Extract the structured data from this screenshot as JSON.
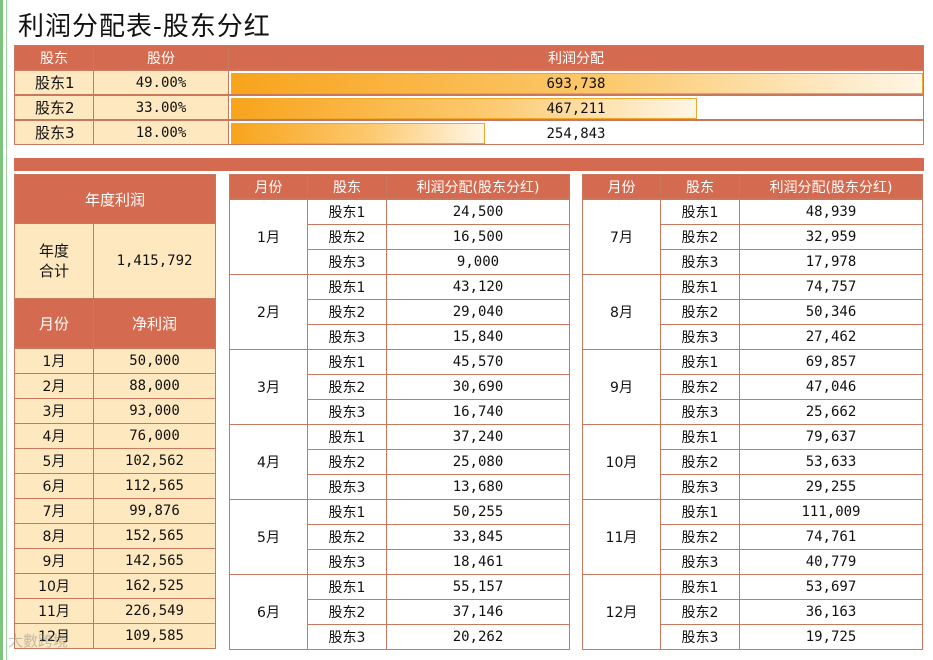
{
  "title": "利润分配表-股东分红",
  "summary": {
    "headers": [
      "股东",
      "股份",
      "利润分配"
    ],
    "rows": [
      {
        "name": "股东1",
        "pct": "49.00%",
        "amount": "693,738",
        "share": 0.49
      },
      {
        "name": "股东2",
        "pct": "33.00%",
        "amount": "467,211",
        "share": 0.33
      },
      {
        "name": "股东3",
        "pct": "18.00%",
        "amount": "254,843",
        "share": 0.18
      }
    ]
  },
  "annual": {
    "header": "年度利润",
    "total_label": "年度\n合计",
    "total_value": "1,415,792",
    "month_header": "月份",
    "profit_header": "净利润",
    "months": [
      {
        "month": "1月",
        "profit": "50,000"
      },
      {
        "month": "2月",
        "profit": "88,000"
      },
      {
        "month": "3月",
        "profit": "93,000"
      },
      {
        "month": "4月",
        "profit": "76,000"
      },
      {
        "month": "5月",
        "profit": "102,562"
      },
      {
        "month": "6月",
        "profit": "112,565"
      },
      {
        "month": "7月",
        "profit": "99,876"
      },
      {
        "month": "8月",
        "profit": "152,565"
      },
      {
        "month": "9月",
        "profit": "142,565"
      },
      {
        "month": "10月",
        "profit": "162,525"
      },
      {
        "month": "11月",
        "profit": "226,549"
      },
      {
        "month": "12月",
        "profit": "109,585"
      }
    ]
  },
  "detail_headers": [
    "月份",
    "股东",
    "利润分配(股东分红)"
  ],
  "detail_left": [
    {
      "month": "1月",
      "rows": [
        [
          "股东1",
          "24,500"
        ],
        [
          "股东2",
          "16,500"
        ],
        [
          "股东3",
          "9,000"
        ]
      ]
    },
    {
      "month": "2月",
      "rows": [
        [
          "股东1",
          "43,120"
        ],
        [
          "股东2",
          "29,040"
        ],
        [
          "股东3",
          "15,840"
        ]
      ]
    },
    {
      "month": "3月",
      "rows": [
        [
          "股东1",
          "45,570"
        ],
        [
          "股东2",
          "30,690"
        ],
        [
          "股东3",
          "16,740"
        ]
      ]
    },
    {
      "month": "4月",
      "rows": [
        [
          "股东1",
          "37,240"
        ],
        [
          "股东2",
          "25,080"
        ],
        [
          "股东3",
          "13,680"
        ]
      ]
    },
    {
      "month": "5月",
      "rows": [
        [
          "股东1",
          "50,255"
        ],
        [
          "股东2",
          "33,845"
        ],
        [
          "股东3",
          "18,461"
        ]
      ]
    },
    {
      "month": "6月",
      "rows": [
        [
          "股东1",
          "55,157"
        ],
        [
          "股东2",
          "37,146"
        ],
        [
          "股东3",
          "20,262"
        ]
      ]
    }
  ],
  "detail_right": [
    {
      "month": "7月",
      "rows": [
        [
          "股东1",
          "48,939"
        ],
        [
          "股东2",
          "32,959"
        ],
        [
          "股东3",
          "17,978"
        ]
      ]
    },
    {
      "month": "8月",
      "rows": [
        [
          "股东1",
          "74,757"
        ],
        [
          "股东2",
          "50,346"
        ],
        [
          "股东3",
          "27,462"
        ]
      ]
    },
    {
      "month": "9月",
      "rows": [
        [
          "股东1",
          "69,857"
        ],
        [
          "股东2",
          "47,046"
        ],
        [
          "股东3",
          "25,662"
        ]
      ]
    },
    {
      "month": "10月",
      "rows": [
        [
          "股东1",
          "79,637"
        ],
        [
          "股东2",
          "53,633"
        ],
        [
          "股东3",
          "29,255"
        ]
      ]
    },
    {
      "month": "11月",
      "rows": [
        [
          "股东1",
          "111,009"
        ],
        [
          "股东2",
          "74,761"
        ],
        [
          "股东3",
          "40,779"
        ]
      ]
    },
    {
      "month": "12月",
      "rows": [
        [
          "股东1",
          "53,697"
        ],
        [
          "股东2",
          "36,163"
        ],
        [
          "股东3",
          "19,725"
        ]
      ]
    }
  ],
  "watermark": "大數跨境",
  "colors": {
    "header": "#d46a4f",
    "cream": "#fde8bf",
    "bar": "#f8a41c"
  }
}
